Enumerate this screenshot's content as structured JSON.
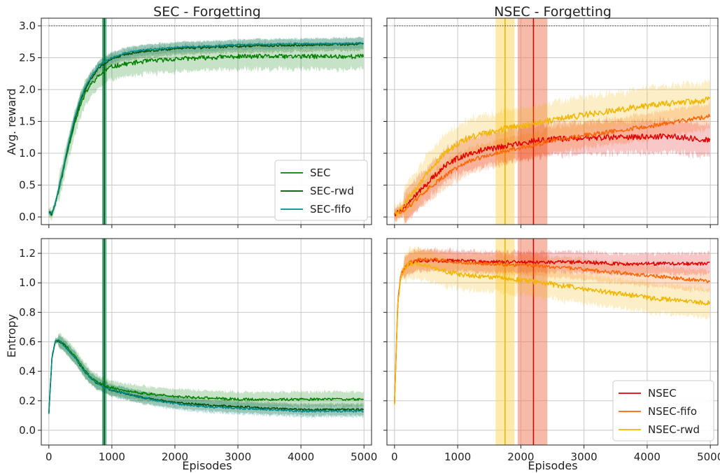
{
  "chart_data": [
    {
      "type": "line",
      "title": "SEC - Forgetting",
      "xlabel": "",
      "ylabel": "Avg. reward",
      "xlim": [
        -120,
        5120
      ],
      "ylim": [
        -0.12,
        3.12
      ],
      "x_ticks": [
        "0",
        "1000",
        "2000",
        "3000",
        "4000",
        "5000"
      ],
      "y_ticks": [
        "0.0",
        "0.5",
        "1.0",
        "1.5",
        "2.0",
        "2.5",
        "3.0"
      ],
      "grid": true,
      "legend": {
        "position": "lower-right",
        "entries": [
          "SEC",
          "SEC-rwd",
          "SEC-fifo"
        ]
      },
      "reference_line": {
        "y": 3.0,
        "style": "dotted"
      },
      "vertical_band": {
        "center": 880,
        "half_width": 35
      },
      "series": [
        {
          "name": "SEC",
          "color": "#008000",
          "band": 0.2,
          "x": [
            0,
            50,
            100,
            200,
            300,
            400,
            500,
            600,
            700,
            800,
            900,
            1000,
            1200,
            1500,
            2000,
            2500,
            3000,
            3500,
            4000,
            4500,
            5000
          ],
          "y": [
            0.08,
            0.05,
            0.2,
            0.6,
            1.05,
            1.45,
            1.75,
            1.98,
            2.12,
            2.22,
            2.3,
            2.36,
            2.4,
            2.44,
            2.48,
            2.5,
            2.52,
            2.52,
            2.52,
            2.52,
            2.52
          ]
        },
        {
          "name": "SEC-rwd",
          "color": "#004d00",
          "band": 0.1,
          "x": [
            0,
            50,
            100,
            200,
            300,
            400,
            500,
            600,
            700,
            800,
            900,
            1000,
            1200,
            1500,
            2000,
            2500,
            3000,
            3500,
            4000,
            4500,
            5000
          ],
          "y": [
            0.08,
            0.05,
            0.2,
            0.62,
            1.08,
            1.5,
            1.82,
            2.05,
            2.22,
            2.35,
            2.42,
            2.48,
            2.55,
            2.6,
            2.64,
            2.66,
            2.68,
            2.69,
            2.7,
            2.71,
            2.71
          ]
        },
        {
          "name": "SEC-fifo",
          "color": "#008b8b",
          "band": 0.08,
          "x": [
            0,
            50,
            100,
            200,
            300,
            400,
            500,
            600,
            700,
            800,
            900,
            1000,
            1200,
            1500,
            2000,
            2500,
            3000,
            3500,
            4000,
            4500,
            5000
          ],
          "y": [
            0.08,
            0.05,
            0.2,
            0.62,
            1.1,
            1.52,
            1.85,
            2.08,
            2.25,
            2.38,
            2.45,
            2.5,
            2.57,
            2.62,
            2.66,
            2.68,
            2.7,
            2.71,
            2.72,
            2.72,
            2.73
          ]
        }
      ]
    },
    {
      "type": "line",
      "title": "NSEC - Forgetting",
      "xlabel": "",
      "ylabel": "",
      "xlim": [
        -120,
        5120
      ],
      "ylim": [
        -0.12,
        3.12
      ],
      "x_ticks": [
        "0",
        "1000",
        "2000",
        "3000",
        "4000",
        "5000"
      ],
      "y_ticks": [],
      "grid": true,
      "reference_line": {
        "y": 3.0,
        "style": "dotted"
      },
      "vertical_bands": [
        {
          "from": 1600,
          "to": 1900,
          "color": "#ffd966",
          "line": 1750,
          "line_color": "#e6b800"
        },
        {
          "from": 1950,
          "to": 2420,
          "color": "#f08060",
          "line": 2200,
          "line_color": "#cc0000"
        }
      ],
      "series": [
        {
          "name": "NSEC",
          "color": "#e00000",
          "band": 0.25,
          "x": [
            0,
            100,
            200,
            400,
            600,
            800,
            1000,
            1200,
            1400,
            1600,
            1800,
            2000,
            2200,
            2500,
            3000,
            3500,
            4000,
            4500,
            5000
          ],
          "y": [
            0.05,
            0.1,
            0.2,
            0.4,
            0.62,
            0.8,
            0.92,
            1.0,
            1.05,
            1.08,
            1.12,
            1.15,
            1.2,
            1.22,
            1.24,
            1.25,
            1.26,
            1.26,
            1.2
          ]
        },
        {
          "name": "NSEC-fifo",
          "color": "#ff6600",
          "band": 0.2,
          "x": [
            0,
            100,
            200,
            400,
            600,
            800,
            1000,
            1200,
            1400,
            1600,
            1800,
            2000,
            2200,
            2500,
            3000,
            3500,
            4000,
            4500,
            5000
          ],
          "y": [
            0.05,
            0.08,
            0.15,
            0.32,
            0.5,
            0.65,
            0.78,
            0.88,
            0.95,
            1.0,
            1.05,
            1.08,
            1.12,
            1.2,
            1.28,
            1.35,
            1.42,
            1.5,
            1.58
          ]
        },
        {
          "name": "NSEC-rwd",
          "color": "#f2b600",
          "band": 0.28,
          "x": [
            0,
            100,
            200,
            400,
            600,
            800,
            1000,
            1200,
            1400,
            1600,
            1800,
            2000,
            2200,
            2500,
            3000,
            3500,
            4000,
            4500,
            5000
          ],
          "y": [
            0.05,
            0.12,
            0.25,
            0.52,
            0.8,
            1.0,
            1.15,
            1.25,
            1.3,
            1.35,
            1.4,
            1.42,
            1.46,
            1.52,
            1.6,
            1.68,
            1.74,
            1.8,
            1.84
          ]
        }
      ]
    },
    {
      "type": "line",
      "title": "",
      "xlabel": "Episodes",
      "ylabel": "Entropy",
      "xlim": [
        -120,
        5120
      ],
      "ylim": [
        -0.1,
        1.3
      ],
      "x_ticks": [
        "0",
        "1000",
        "2000",
        "3000",
        "4000",
        "5000"
      ],
      "y_ticks": [
        "0.0",
        "0.2",
        "0.4",
        "0.6",
        "0.8",
        "1.0",
        "1.2"
      ],
      "grid": true,
      "vertical_band": {
        "center": 880,
        "half_width": 35
      },
      "series": [
        {
          "name": "SEC",
          "color": "#008000",
          "band": 0.05,
          "x": [
            0,
            50,
            100,
            150,
            200,
            300,
            400,
            500,
            600,
            700,
            800,
            900,
            1000,
            1200,
            1500,
            2000,
            2500,
            3000,
            3500,
            4000,
            4500,
            5000
          ],
          "y": [
            0.12,
            0.5,
            0.6,
            0.62,
            0.6,
            0.56,
            0.51,
            0.45,
            0.39,
            0.35,
            0.32,
            0.3,
            0.29,
            0.27,
            0.25,
            0.23,
            0.22,
            0.21,
            0.21,
            0.21,
            0.21,
            0.21
          ]
        },
        {
          "name": "SEC-rwd",
          "color": "#004d00",
          "band": 0.04,
          "x": [
            0,
            50,
            100,
            150,
            200,
            300,
            400,
            500,
            600,
            700,
            800,
            900,
            1000,
            1200,
            1500,
            2000,
            2500,
            3000,
            3500,
            4000,
            4500,
            5000
          ],
          "y": [
            0.12,
            0.5,
            0.6,
            0.61,
            0.59,
            0.55,
            0.5,
            0.44,
            0.38,
            0.34,
            0.31,
            0.29,
            0.27,
            0.25,
            0.22,
            0.19,
            0.17,
            0.16,
            0.15,
            0.14,
            0.14,
            0.14
          ]
        },
        {
          "name": "SEC-fifo",
          "color": "#008b8b",
          "band": 0.04,
          "x": [
            0,
            50,
            100,
            150,
            200,
            300,
            400,
            500,
            600,
            700,
            800,
            900,
            1000,
            1200,
            1500,
            2000,
            2500,
            3000,
            3500,
            4000,
            4500,
            5000
          ],
          "y": [
            0.12,
            0.5,
            0.6,
            0.61,
            0.59,
            0.55,
            0.5,
            0.44,
            0.38,
            0.34,
            0.31,
            0.29,
            0.27,
            0.25,
            0.22,
            0.18,
            0.16,
            0.15,
            0.14,
            0.13,
            0.13,
            0.13
          ]
        }
      ]
    },
    {
      "type": "line",
      "title": "",
      "xlabel": "Episodes",
      "ylabel": "",
      "xlim": [
        -120,
        5120
      ],
      "ylim": [
        -0.1,
        1.3
      ],
      "x_ticks": [
        "0",
        "1000",
        "2000",
        "3000",
        "4000",
        "5000"
      ],
      "y_ticks": [],
      "grid": true,
      "legend": {
        "position": "lower-right",
        "entries": [
          "NSEC",
          "NSEC-fifo",
          "NSEC-rwd"
        ]
      },
      "vertical_bands": [
        {
          "from": 1600,
          "to": 1900,
          "color": "#ffd966",
          "line": 1750,
          "line_color": "#e6b800"
        },
        {
          "from": 1950,
          "to": 2420,
          "color": "#f08060",
          "line": 2200,
          "line_color": "#cc0000"
        }
      ],
      "series": [
        {
          "name": "NSEC",
          "color": "#e00000",
          "band": 0.07,
          "x": [
            0,
            50,
            100,
            200,
            300,
            400,
            600,
            800,
            1000,
            1500,
            2000,
            2500,
            3000,
            3500,
            4000,
            4500,
            5000
          ],
          "y": [
            0.18,
            0.85,
            1.05,
            1.12,
            1.14,
            1.15,
            1.15,
            1.15,
            1.15,
            1.14,
            1.14,
            1.14,
            1.14,
            1.13,
            1.13,
            1.13,
            1.13
          ]
        },
        {
          "name": "NSEC-fifo",
          "color": "#ff6600",
          "band": 0.07,
          "x": [
            0,
            50,
            100,
            200,
            300,
            400,
            600,
            800,
            1000,
            1500,
            2000,
            2500,
            3000,
            3500,
            4000,
            4500,
            5000
          ],
          "y": [
            0.18,
            0.85,
            1.05,
            1.13,
            1.15,
            1.16,
            1.16,
            1.15,
            1.14,
            1.13,
            1.12,
            1.11,
            1.09,
            1.07,
            1.05,
            1.03,
            1.01
          ]
        },
        {
          "name": "NSEC-rwd",
          "color": "#f2b600",
          "band": 0.1,
          "x": [
            0,
            50,
            100,
            200,
            300,
            400,
            600,
            800,
            1000,
            1500,
            2000,
            2500,
            3000,
            3500,
            4000,
            4500,
            5000
          ],
          "y": [
            0.18,
            0.85,
            1.05,
            1.12,
            1.13,
            1.13,
            1.1,
            1.08,
            1.06,
            1.04,
            1.02,
            0.99,
            0.96,
            0.93,
            0.9,
            0.88,
            0.86
          ]
        }
      ]
    }
  ]
}
